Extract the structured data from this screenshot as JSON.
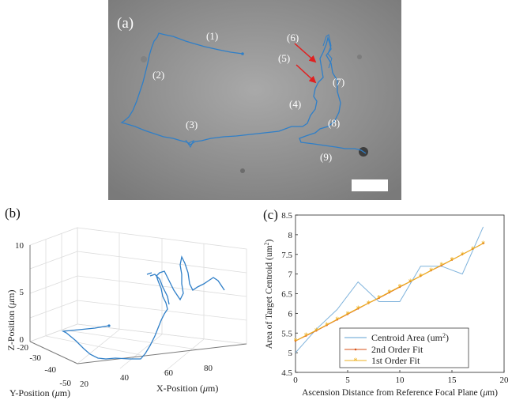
{
  "panel_a": {
    "label": "(a)",
    "segment_labels": [
      "(1)",
      "(2)",
      "(3)",
      "(4)",
      "(5)",
      "(6)",
      "(7)",
      "(8)",
      "(9)"
    ],
    "colors": {
      "background": "#8c8c8c",
      "trajectory": "#2f7fc8",
      "arrow": "#e02020",
      "scale_bar": "#ffffff"
    }
  },
  "panel_b": {
    "label": "(b)",
    "zlabel_prefix": "Z-Position (",
    "ylabel_prefix": "Y-Position (",
    "xlabel_prefix": "X-Position (",
    "unit_mu": "μ",
    "unit_m": "m)",
    "z_ticks": [
      "0",
      "5",
      "10"
    ],
    "y_ticks": [
      "-20",
      "-30",
      "-40",
      "-50"
    ],
    "x_ticks": [
      "20",
      "40",
      "60",
      "80"
    ],
    "colors": {
      "trajectory": "#2f7fc8",
      "grid": "#dcdcdc",
      "axis": "#7a7a7a"
    }
  },
  "panel_c": {
    "label": "(c)",
    "ylabel": "Area of Target Centroid (um",
    "ylabel_sup": "2",
    "ylabel_close": ")",
    "xlabel": "Ascension Distance from Reference Focal Plane (",
    "xlabel_mu": "μ",
    "xlabel_unit": "m)",
    "colors": {
      "area": "#7fb3dc",
      "fit2": "#d95319",
      "fit1": "#edb120",
      "axis": "#262626"
    }
  },
  "chart_data": [
    {
      "type": "line",
      "panel": "(c)",
      "xlabel": "Ascension Distance from Reference Focal Plane (μm)",
      "ylabel": "Area of Target Centroid (um2)",
      "xlim": [
        0,
        20
      ],
      "ylim": [
        4.5,
        8.5
      ],
      "x_ticks": [
        "0",
        "5",
        "10",
        "15",
        "20"
      ],
      "y_ticks": [
        "4.5",
        "5",
        "5.5",
        "6",
        "6.5",
        "7",
        "7.5",
        "8",
        "8.5"
      ],
      "legend_position": "bottom-right",
      "grid": false,
      "series": [
        {
          "name": "Centroid Area (um",
          "name_sup": "2",
          "name_close": ")",
          "style": "line",
          "x": [
            0,
            2,
            4,
            6,
            8,
            10,
            12,
            14,
            16,
            18
          ],
          "y": [
            5.0,
            5.6,
            6.1,
            6.8,
            6.3,
            6.3,
            7.2,
            7.2,
            7.0,
            8.2
          ]
        },
        {
          "name": "2nd Order Fit",
          "style": "line-dot-markers",
          "x": [
            0,
            1,
            2,
            3,
            4,
            5,
            6,
            7,
            8,
            9,
            10,
            11,
            12,
            13,
            14,
            15,
            16,
            17,
            18
          ],
          "y": [
            5.3,
            5.43,
            5.56,
            5.7,
            5.84,
            5.98,
            6.12,
            6.26,
            6.39,
            6.53,
            6.67,
            6.81,
            6.95,
            7.09,
            7.22,
            7.36,
            7.5,
            7.64,
            7.78
          ]
        },
        {
          "name": "1st Order Fit",
          "style": "line-star-markers",
          "x": [
            0,
            1,
            2,
            3,
            4,
            5,
            6,
            7,
            8,
            9,
            10,
            11,
            12,
            13,
            14,
            15,
            16,
            17,
            18
          ],
          "y": [
            5.3,
            5.44,
            5.57,
            5.71,
            5.85,
            5.99,
            6.13,
            6.26,
            6.4,
            6.54,
            6.68,
            6.81,
            6.95,
            7.09,
            7.23,
            7.36,
            7.5,
            7.64,
            7.78
          ]
        }
      ]
    }
  ]
}
